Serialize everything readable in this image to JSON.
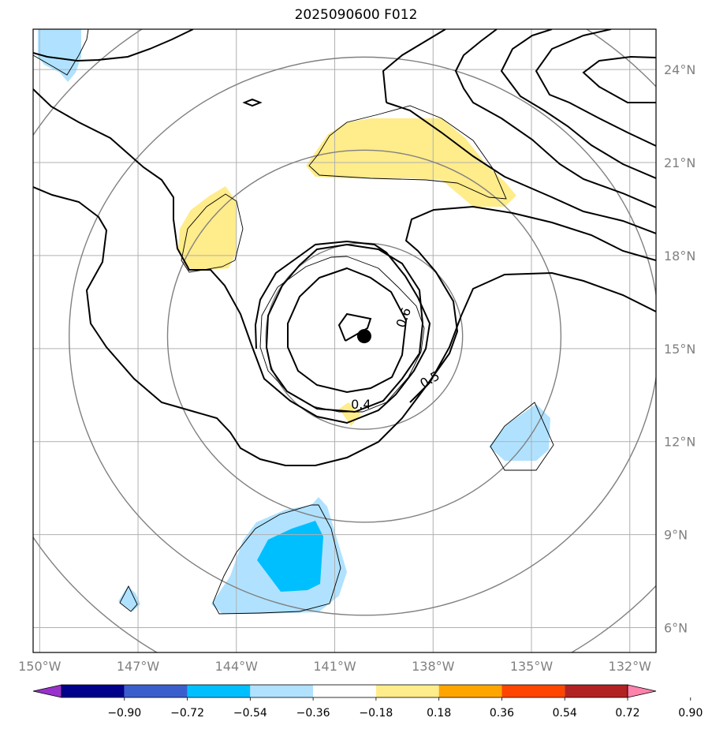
{
  "title": "2025090600 F012",
  "map": {
    "lon_range": [
      -150.2,
      -131.2
    ],
    "lat_range": [
      5.2,
      25.3
    ],
    "lon_ticks": [
      {
        "value": -150,
        "label": "150°W"
      },
      {
        "value": -147,
        "label": "147°W"
      },
      {
        "value": -144,
        "label": "144°W"
      },
      {
        "value": -141,
        "label": "141°W"
      },
      {
        "value": -138,
        "label": "138°W"
      },
      {
        "value": -135,
        "label": "135°W"
      },
      {
        "value": -132,
        "label": "132°W"
      }
    ],
    "lat_ticks": [
      {
        "value": 6,
        "label": "6°N"
      },
      {
        "value": 9,
        "label": "9°N"
      },
      {
        "value": 12,
        "label": "12°N"
      },
      {
        "value": 15,
        "label": "15°N"
      },
      {
        "value": 18,
        "label": "18°N"
      },
      {
        "value": 21,
        "label": "21°N"
      },
      {
        "value": 24,
        "label": "24°N"
      }
    ],
    "storm_center": {
      "lon": -140.1,
      "lat": 15.4
    },
    "range_rings_deg": [
      3,
      6,
      9,
      12
    ],
    "contour_labels": [
      {
        "text": "0.6",
        "lon": -138.9,
        "lat": 16.0,
        "rotate": -70
      },
      {
        "text": "0.5",
        "lon": -138.1,
        "lat": 14.0,
        "rotate": -30
      },
      {
        "text": "0.4",
        "lon": -140.2,
        "lat": 13.2,
        "rotate": 0
      }
    ]
  },
  "colorbar": {
    "colors": [
      "#9932cc",
      "#00008b",
      "#3a5fcd",
      "#00bfff",
      "#b0e2ff",
      "#ffffff",
      "#ffec8b",
      "#ffa500",
      "#ff4500",
      "#b22222",
      "#ff82ab"
    ],
    "labels": [
      "−0.90",
      "−0.72",
      "−0.54",
      "−0.36",
      "−0.18",
      "0.18",
      "0.36",
      "0.54",
      "0.72",
      "0.90"
    ]
  }
}
